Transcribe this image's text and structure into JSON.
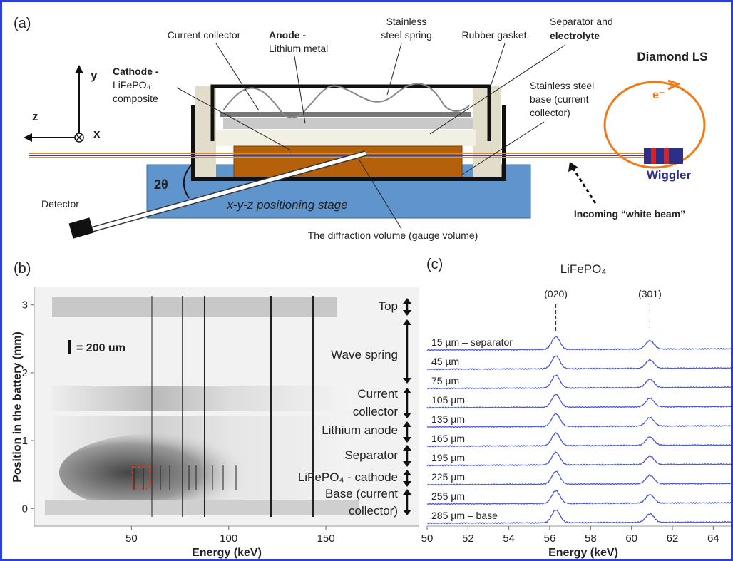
{
  "panel_a": {
    "label": "(a)",
    "axes": {
      "y": "y",
      "z": "z",
      "x": "x"
    },
    "current_collector": "Current collector",
    "anode": [
      "Anode -",
      "Lithium metal"
    ],
    "spring": [
      "Stainless",
      "steel spring"
    ],
    "gasket": "Rubber gasket",
    "separator": [
      "Separator and",
      "electrolyte"
    ],
    "cathode": [
      "Cathode -",
      "LiFePO₄-",
      "composite"
    ],
    "base": [
      "Stainless steel",
      "base (current",
      "collector)"
    ],
    "source": "Diamond LS",
    "electron": "e⁻",
    "wiggler": "Wiggler",
    "beam": "Incoming “white beam”",
    "angle": "2θ",
    "detector": "Detector",
    "stage": "x-y-z positioning stage",
    "gauge": "The diffraction volume (gauge volume)"
  },
  "panel_b": {
    "label": "(b)",
    "type": "image",
    "y_label": "Position in the battery (mm)",
    "x_label": "Energy (keV)",
    "xlim": [
      0,
      198
    ],
    "xticks": [
      50,
      100,
      150
    ],
    "ylim": [
      -0.26,
      3.26
    ],
    "yticks": [
      0,
      1,
      2,
      3
    ],
    "scale_bar": "= 200 um",
    "regions": [
      "Top",
      "Wave spring",
      "Current",
      "collector",
      "Lithium anode",
      "Separator",
      "LiFePO₄ - cathode",
      "Base (current",
      "collector)"
    ]
  },
  "panel_c": {
    "label": "(c)",
    "type": "line",
    "title": "LiFePO₄",
    "x_label": "Energy (keV)",
    "xlim": [
      50,
      65
    ],
    "xticks": [
      50,
      52,
      54,
      56,
      58,
      60,
      62,
      64
    ],
    "peaks": [
      {
        "label": "(020)",
        "x": 56.3
      },
      {
        "label": "(301)",
        "x": 60.9
      }
    ],
    "traces": [
      "15 µm – separator",
      "45 µm",
      "75 µm",
      "105 µm",
      "135 µm",
      "165 µm",
      "195 µm",
      "225 µm",
      "255 µm",
      "285 µm – base"
    ],
    "color": "#4a57d6"
  }
}
